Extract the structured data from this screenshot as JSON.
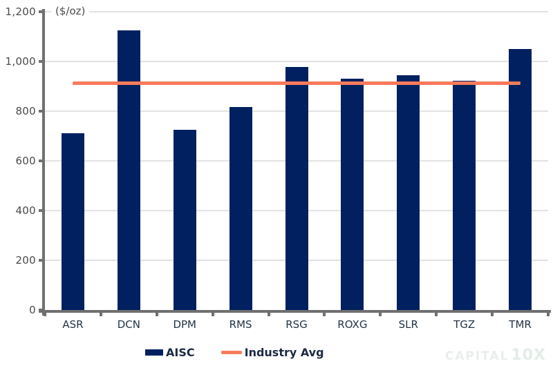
{
  "chart_data": {
    "type": "bar",
    "title": "",
    "unit_label": "($/oz)",
    "categories": [
      "ASR",
      "DCN",
      "DPM",
      "RMS",
      "RSG",
      "ROXG",
      "SLR",
      "TGZ",
      "TMR"
    ],
    "series": [
      {
        "name": "AISC",
        "type": "bar",
        "values": [
          710,
          1125,
          725,
          817,
          978,
          930,
          945,
          921,
          1050
        ],
        "color": "#002060"
      },
      {
        "name": "Industry Avg",
        "type": "line",
        "value": 913,
        "color": "#F87B5B"
      }
    ],
    "ylim": [
      0,
      1200
    ],
    "yticks": [
      {
        "value": 0,
        "label": "0"
      },
      {
        "value": 200,
        "label": "200"
      },
      {
        "value": 400,
        "label": "400"
      },
      {
        "value": 600,
        "label": "600"
      },
      {
        "value": 800,
        "label": "800"
      },
      {
        "value": 1000,
        "label": "1,000"
      },
      {
        "value": 1200,
        "label": "1,200"
      }
    ],
    "grid": "horizontal",
    "legend_position": "bottom"
  },
  "legend": {
    "items": [
      {
        "label": "AISC",
        "swatch": "bar"
      },
      {
        "label": "Industry Avg",
        "swatch": "line"
      }
    ]
  },
  "watermark": {
    "text_left": "CAPITAL",
    "text_right": "10X"
  },
  "colors": {
    "bar": "#002060",
    "avg_line": "#F87B5B",
    "grid": "#E2E2E2",
    "axis": "#707070",
    "y_label": "#4A4A4A",
    "x_label": "#233447",
    "legend_text": "#1B2A44"
  }
}
